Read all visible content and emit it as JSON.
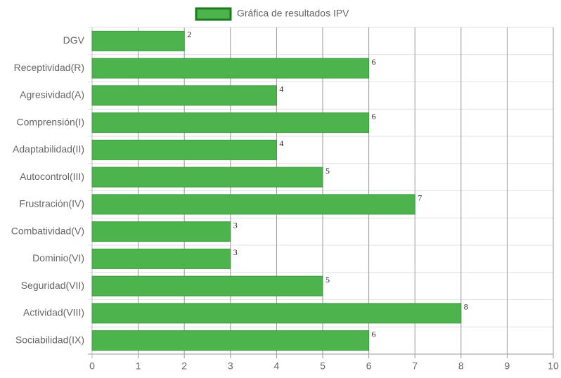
{
  "chart_data": {
    "type": "bar",
    "orientation": "horizontal",
    "categories": [
      "DGV",
      "Receptividad(R)",
      "Agresividad(A)",
      "Comprensión(I)",
      "Adaptabilidad(II)",
      "Autocontrol(III)",
      "Frustración(IV)",
      "Combatividad(V)",
      "Dominio(VI)",
      "Seguridad(VII)",
      "Actividad(VIII)",
      "Sociabilidad(IX)"
    ],
    "series": [
      {
        "name": "Gráfica de resultados IPV",
        "color": "#4db34d",
        "border": "#3d9a3d",
        "values": [
          2,
          6,
          4,
          6,
          4,
          5,
          7,
          3,
          3,
          5,
          8,
          6
        ]
      }
    ],
    "xlim": [
      0,
      10
    ],
    "xticks": [
      0,
      1,
      2,
      3,
      4,
      5,
      6,
      7,
      8,
      9,
      10
    ],
    "grid": true,
    "legend": "top"
  }
}
